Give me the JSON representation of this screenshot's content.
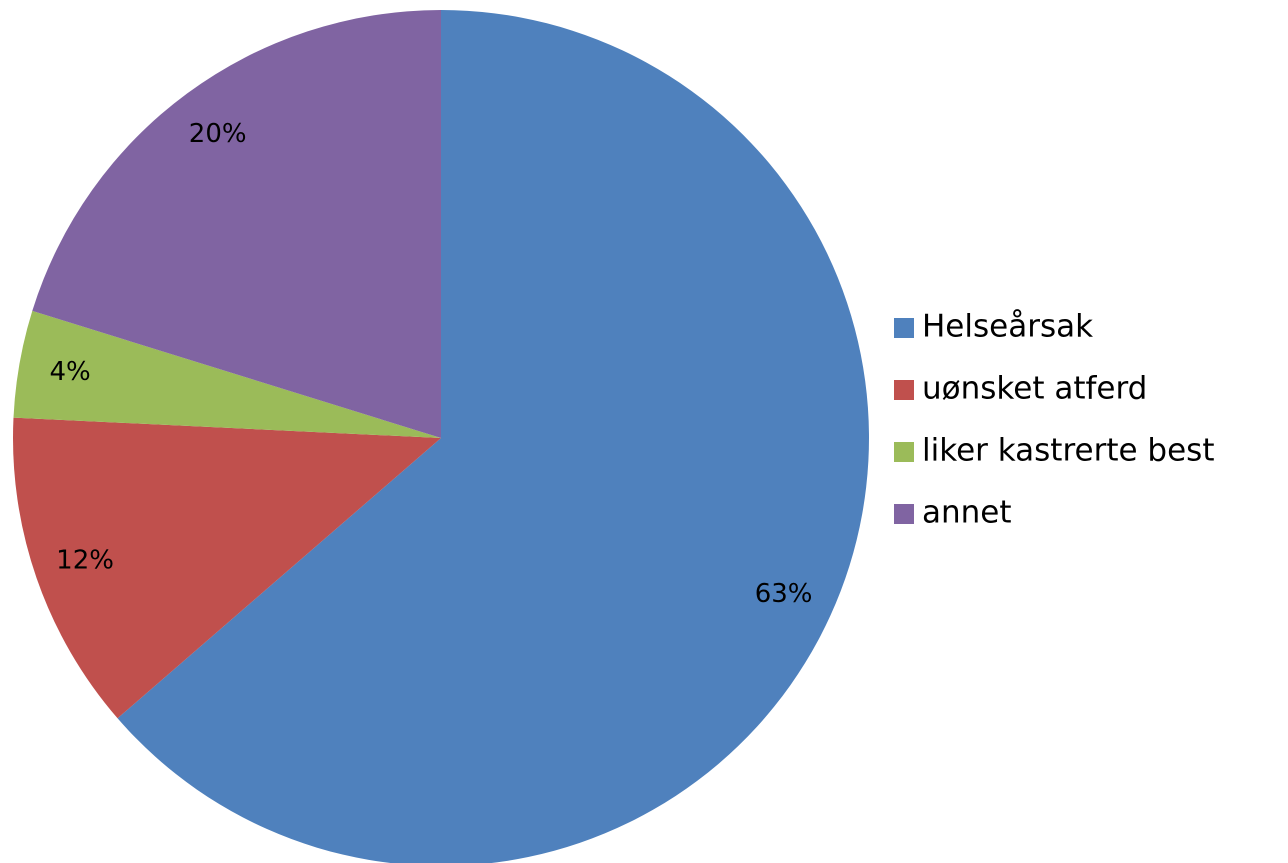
{
  "chart_data": {
    "type": "pie",
    "categories": [
      "Helseårsak",
      "uønsket atferd",
      "liker kastrerte best",
      "annet"
    ],
    "values": [
      63,
      12,
      4,
      20
    ],
    "value_labels": [
      "63%",
      "12%",
      "4%",
      "20%"
    ],
    "colors": [
      "#4f81bd",
      "#c0504d",
      "#9bbb59",
      "#8064a2"
    ],
    "legend": "right"
  }
}
